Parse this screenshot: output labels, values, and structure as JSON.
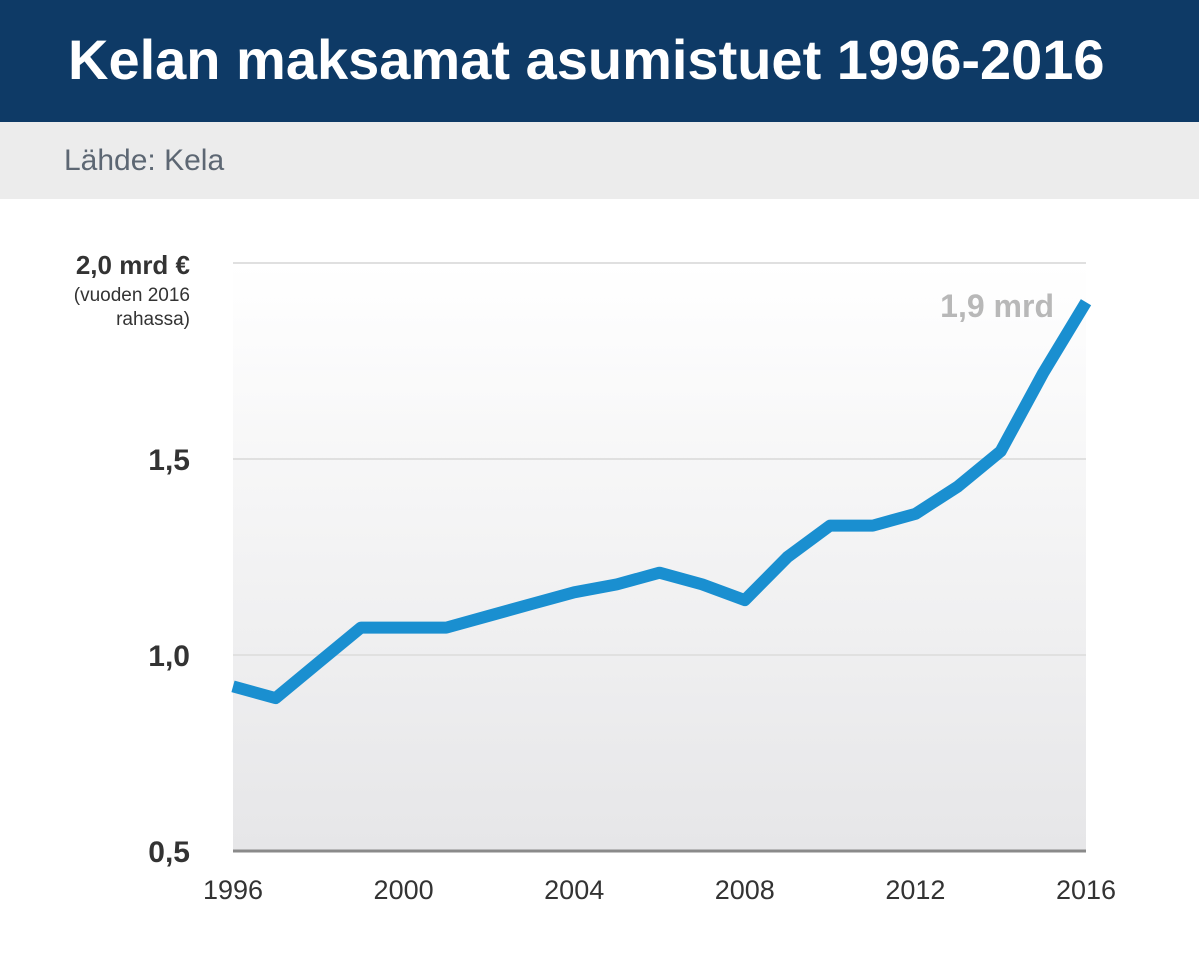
{
  "header": {
    "title": "Kelan maksamat asumistuet 1996-2016"
  },
  "source": {
    "text": "Lähde: Kela"
  },
  "colors": {
    "header_bg": "#0e3a66",
    "line": "#1a8fd0",
    "annotation": "#b8b8b8"
  },
  "chart_data": {
    "type": "line",
    "title": "Kelan maksamat asumistuet 1996-2016",
    "y_unit_label": "2,0 mrd €",
    "y_unit_note": [
      "(vuoden 2016",
      "rahassa)"
    ],
    "ylim": [
      0.5,
      2.0
    ],
    "y_ticks": [
      {
        "value": 2.0,
        "label": ""
      },
      {
        "value": 1.5,
        "label": "1,5"
      },
      {
        "value": 1.0,
        "label": "1,0"
      },
      {
        "value": 0.5,
        "label": "0,5"
      }
    ],
    "xlim": [
      1996,
      2016
    ],
    "x_ticks": [
      1996,
      2000,
      2004,
      2008,
      2012,
      2016
    ],
    "grid": true,
    "x": [
      1996,
      1997,
      1998,
      1999,
      2000,
      2001,
      2002,
      2003,
      2004,
      2005,
      2006,
      2007,
      2008,
      2009,
      2010,
      2011,
      2012,
      2013,
      2014,
      2015,
      2016
    ],
    "values": [
      0.92,
      0.89,
      0.98,
      1.07,
      1.07,
      1.07,
      1.1,
      1.13,
      1.16,
      1.18,
      1.21,
      1.18,
      1.14,
      1.25,
      1.33,
      1.33,
      1.36,
      1.43,
      1.52,
      1.72,
      1.9
    ],
    "annotations": [
      {
        "x": 2016,
        "y": 1.9,
        "text": "1,9 mrd"
      }
    ]
  }
}
